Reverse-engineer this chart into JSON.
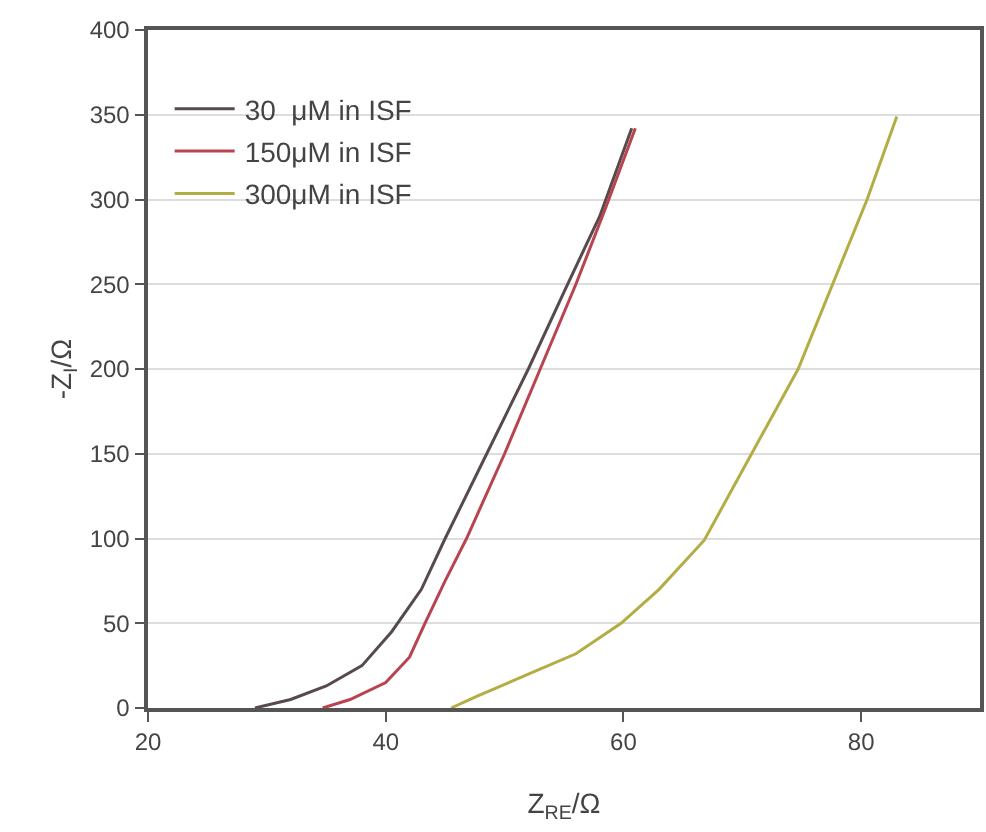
{
  "chart_data": {
    "type": "line",
    "xlabel": "Z$_{RE}$/Ω",
    "ylabel": "-Z$_{I}$/Ω",
    "xlim": [
      20,
      90
    ],
    "xticks": [
      20,
      40,
      60,
      80
    ],
    "ylim": [
      0,
      400
    ],
    "yticks": [
      0,
      50,
      100,
      150,
      200,
      250,
      300,
      350,
      400
    ],
    "grid": "y",
    "legend": "top left",
    "marker": "none",
    "line_style": "solid",
    "series": [
      {
        "name": "30  μM in ISF",
        "color": "#574a4c",
        "x": [
          29,
          32,
          35,
          38,
          40.5,
          43,
          45,
          48.5,
          52,
          55.3,
          58,
          60.7
        ],
        "values": [
          0,
          5,
          13,
          25,
          45,
          70,
          100,
          150,
          200,
          250,
          290,
          342
        ]
      },
      {
        "name": "150μM in ISF",
        "color": "#b8444f",
        "x": [
          34.7,
          37,
          40,
          42,
          43.3,
          45,
          46.8,
          50,
          53,
          56,
          58.5,
          61
        ],
        "values": [
          0,
          5,
          15,
          30,
          50,
          75,
          100,
          150,
          200,
          250,
          295,
          342
        ]
      },
      {
        "name": "300μM in ISF",
        "color": "#b3ad45",
        "x": [
          45.5,
          47.7,
          52,
          56,
          59.8,
          63,
          66.8,
          70,
          74.7,
          80.5,
          83
        ],
        "values": [
          0,
          7,
          20,
          32,
          50,
          70,
          99,
          140,
          200,
          300,
          349
        ]
      }
    ]
  }
}
